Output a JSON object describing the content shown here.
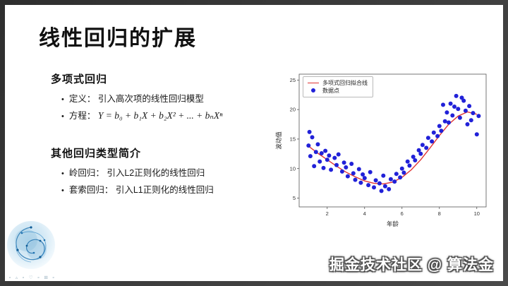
{
  "slide": {
    "title": "线性回归的扩展",
    "sections": [
      {
        "heading": "多项式回归",
        "bullets": [
          {
            "label": "定义：",
            "text": "引入高次项的线性回归模型"
          },
          {
            "label": "方程：",
            "text": "Y = b₀ + b₁X + b₂X² + ... + bₙXⁿ"
          }
        ]
      },
      {
        "heading": "其他回归类型简介",
        "bullets": [
          {
            "label": "岭回归：",
            "text": "引入L2正则化的线性回归"
          },
          {
            "label": "套索回归：",
            "text": "引入L1正则化的线性回归"
          }
        ]
      }
    ],
    "watermark": "掘金技术社区 @ 算法金",
    "logo_marks": "∘ ▵ ∘ ♡ ∘ ⊞ ∘"
  },
  "chart_data": {
    "type": "scatter",
    "title": "",
    "xlabel": "年龄",
    "ylabel": "波动值",
    "xlim": [
      0.5,
      10.5
    ],
    "ylim": [
      3.5,
      26
    ],
    "xticks": [
      2,
      4,
      6,
      8,
      10
    ],
    "yticks": [
      5,
      10,
      15,
      20,
      25
    ],
    "grid": false,
    "legend_position": "upper-left",
    "legend": [
      {
        "label": "多项式回归拟合线",
        "type": "line",
        "color": "#e03434"
      },
      {
        "label": "数据点",
        "type": "dot",
        "color": "#2121d8"
      }
    ],
    "curve": [
      [
        1.0,
        13.8
      ],
      [
        1.5,
        12.6
      ],
      [
        2.0,
        11.5
      ],
      [
        2.5,
        10.4
      ],
      [
        3.0,
        9.4
      ],
      [
        3.5,
        8.6
      ],
      [
        4.0,
        7.9
      ],
      [
        4.5,
        7.5
      ],
      [
        5.0,
        7.4
      ],
      [
        5.5,
        7.7
      ],
      [
        6.0,
        8.5
      ],
      [
        6.5,
        9.8
      ],
      [
        7.0,
        11.5
      ],
      [
        7.5,
        13.5
      ],
      [
        8.0,
        15.6
      ],
      [
        8.5,
        17.5
      ],
      [
        9.0,
        18.9
      ],
      [
        9.5,
        19.6
      ],
      [
        10.0,
        19.2
      ]
    ],
    "scatter": [
      [
        1.0,
        13.9
      ],
      [
        1.05,
        16.2
      ],
      [
        1.1,
        12.1
      ],
      [
        1.2,
        15.3
      ],
      [
        1.3,
        10.4
      ],
      [
        1.4,
        12.8
      ],
      [
        1.5,
        14.1
      ],
      [
        1.6,
        11.2
      ],
      [
        1.7,
        12.6
      ],
      [
        1.8,
        10.1
      ],
      [
        1.9,
        13.0
      ],
      [
        2.0,
        11.5
      ],
      [
        2.1,
        12.2
      ],
      [
        2.2,
        9.8
      ],
      [
        2.4,
        11.8
      ],
      [
        2.5,
        10.6
      ],
      [
        2.6,
        12.4
      ],
      [
        2.8,
        9.5
      ],
      [
        2.9,
        11.0
      ],
      [
        3.0,
        10.2
      ],
      [
        3.1,
        8.7
      ],
      [
        3.3,
        10.8
      ],
      [
        3.4,
        9.2
      ],
      [
        3.5,
        8.1
      ],
      [
        3.7,
        9.9
      ],
      [
        3.8,
        7.6
      ],
      [
        3.9,
        9.0
      ],
      [
        4.0,
        8.4
      ],
      [
        4.2,
        7.2
      ],
      [
        4.3,
        9.4
      ],
      [
        4.5,
        6.8
      ],
      [
        4.6,
        8.0
      ],
      [
        4.8,
        7.5
      ],
      [
        4.9,
        6.2
      ],
      [
        5.0,
        8.8
      ],
      [
        5.1,
        7.0
      ],
      [
        5.3,
        6.5
      ],
      [
        5.4,
        8.2
      ],
      [
        5.6,
        7.8
      ],
      [
        5.7,
        9.1
      ],
      [
        5.9,
        8.5
      ],
      [
        6.0,
        10.0
      ],
      [
        6.1,
        9.3
      ],
      [
        6.3,
        11.2
      ],
      [
        6.4,
        10.5
      ],
      [
        6.6,
        12.0
      ],
      [
        6.7,
        11.4
      ],
      [
        6.9,
        13.1
      ],
      [
        7.0,
        12.5
      ],
      [
        7.1,
        14.0
      ],
      [
        7.3,
        13.5
      ],
      [
        7.4,
        15.2
      ],
      [
        7.6,
        14.6
      ],
      [
        7.7,
        16.1
      ],
      [
        7.9,
        15.5
      ],
      [
        8.0,
        17.2
      ],
      [
        8.1,
        16.4
      ],
      [
        8.2,
        20.8
      ],
      [
        8.3,
        18.0
      ],
      [
        8.4,
        19.5
      ],
      [
        8.5,
        17.8
      ],
      [
        8.6,
        21.0
      ],
      [
        8.7,
        19.0
      ],
      [
        8.8,
        20.5
      ],
      [
        8.9,
        22.3
      ],
      [
        9.0,
        20.1
      ],
      [
        9.1,
        18.6
      ],
      [
        9.2,
        22.0
      ],
      [
        9.3,
        21.5
      ],
      [
        9.4,
        19.8
      ],
      [
        9.5,
        17.5
      ],
      [
        9.6,
        20.6
      ],
      [
        9.7,
        18.2
      ],
      [
        9.8,
        19.4
      ],
      [
        10.0,
        15.8
      ],
      [
        10.1,
        18.9
      ]
    ]
  }
}
